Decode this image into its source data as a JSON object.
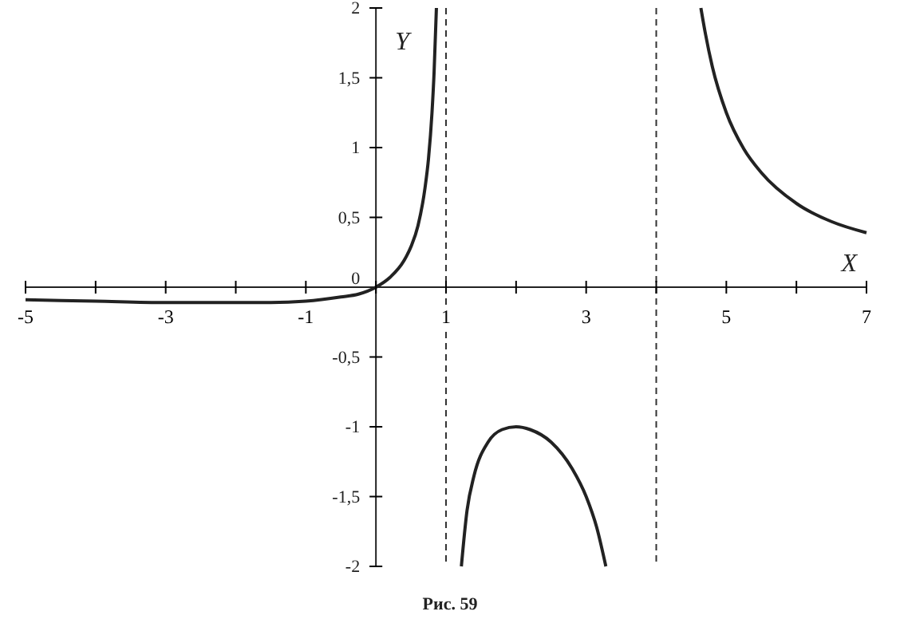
{
  "chart_data": {
    "type": "line",
    "xlabel": "X",
    "ylabel": "Y",
    "annotations": [
      "Рис. 59"
    ],
    "xlim": [
      -5,
      7
    ],
    "ylim": [
      -2,
      2
    ],
    "xticks": [
      -5,
      {
        "value": -4,
        "label": null
      },
      -3,
      {
        "value": -2,
        "label": null
      },
      -1,
      {
        "value": 0,
        "label": null
      },
      1,
      {
        "value": 2,
        "label": null
      },
      3,
      {
        "value": 4,
        "label": null
      },
      5,
      {
        "value": 6,
        "label": null
      },
      7
    ],
    "yticks": [
      {
        "value": -2,
        "label": "-2"
      },
      {
        "value": -1.5,
        "label": "-1,5"
      },
      {
        "value": -1,
        "label": "-1"
      },
      {
        "value": -0.5,
        "label": "-0,5"
      },
      {
        "value": 0,
        "label": "0"
      },
      {
        "value": 0.5,
        "label": "0,5"
      },
      {
        "value": 1,
        "label": "1"
      },
      {
        "value": 1.5,
        "label": "1,5"
      },
      {
        "value": 2,
        "label": "2"
      }
    ],
    "grid": false,
    "marker": "none",
    "line_style": "solid",
    "ref_lines": [
      {
        "axis": "x",
        "value": 1,
        "line_style": "dashed",
        "color": "#333333"
      },
      {
        "axis": "x",
        "value": 4,
        "line_style": "dashed",
        "color": "#333333"
      }
    ],
    "series": [
      {
        "color": "#222222",
        "x": [
          -5,
          -4,
          -3,
          -2,
          -1.5,
          -1,
          -0.5,
          -0.25,
          0,
          0.2,
          0.4,
          0.5,
          0.6,
          0.7,
          0.75,
          0.8,
          0.83,
          0.863,
          1,
          1.219,
          1.3,
          1.4,
          1.6,
          1.8,
          2,
          2.2,
          2.5,
          2.8,
          3,
          3.15,
          3.281,
          4,
          4.637,
          4.7,
          4.8,
          5,
          5.25,
          5.5,
          6,
          6.5,
          7
        ],
        "values": [
          -0.09,
          -0.1,
          -0.11,
          -0.11,
          -0.11,
          -0.1,
          -0.07,
          -0.05,
          0,
          0.07,
          0.19,
          0.29,
          0.44,
          0.71,
          0.92,
          1.25,
          1.54,
          2,
          null,
          -2,
          -1.6,
          -1.35,
          -1.11,
          -1.02,
          -1,
          -1.02,
          -1.11,
          -1.3,
          -1.5,
          -1.72,
          -2,
          null,
          2,
          1.82,
          1.58,
          1.25,
          0.99,
          0.82,
          0.6,
          0.47,
          0.39
        ]
      }
    ]
  }
}
